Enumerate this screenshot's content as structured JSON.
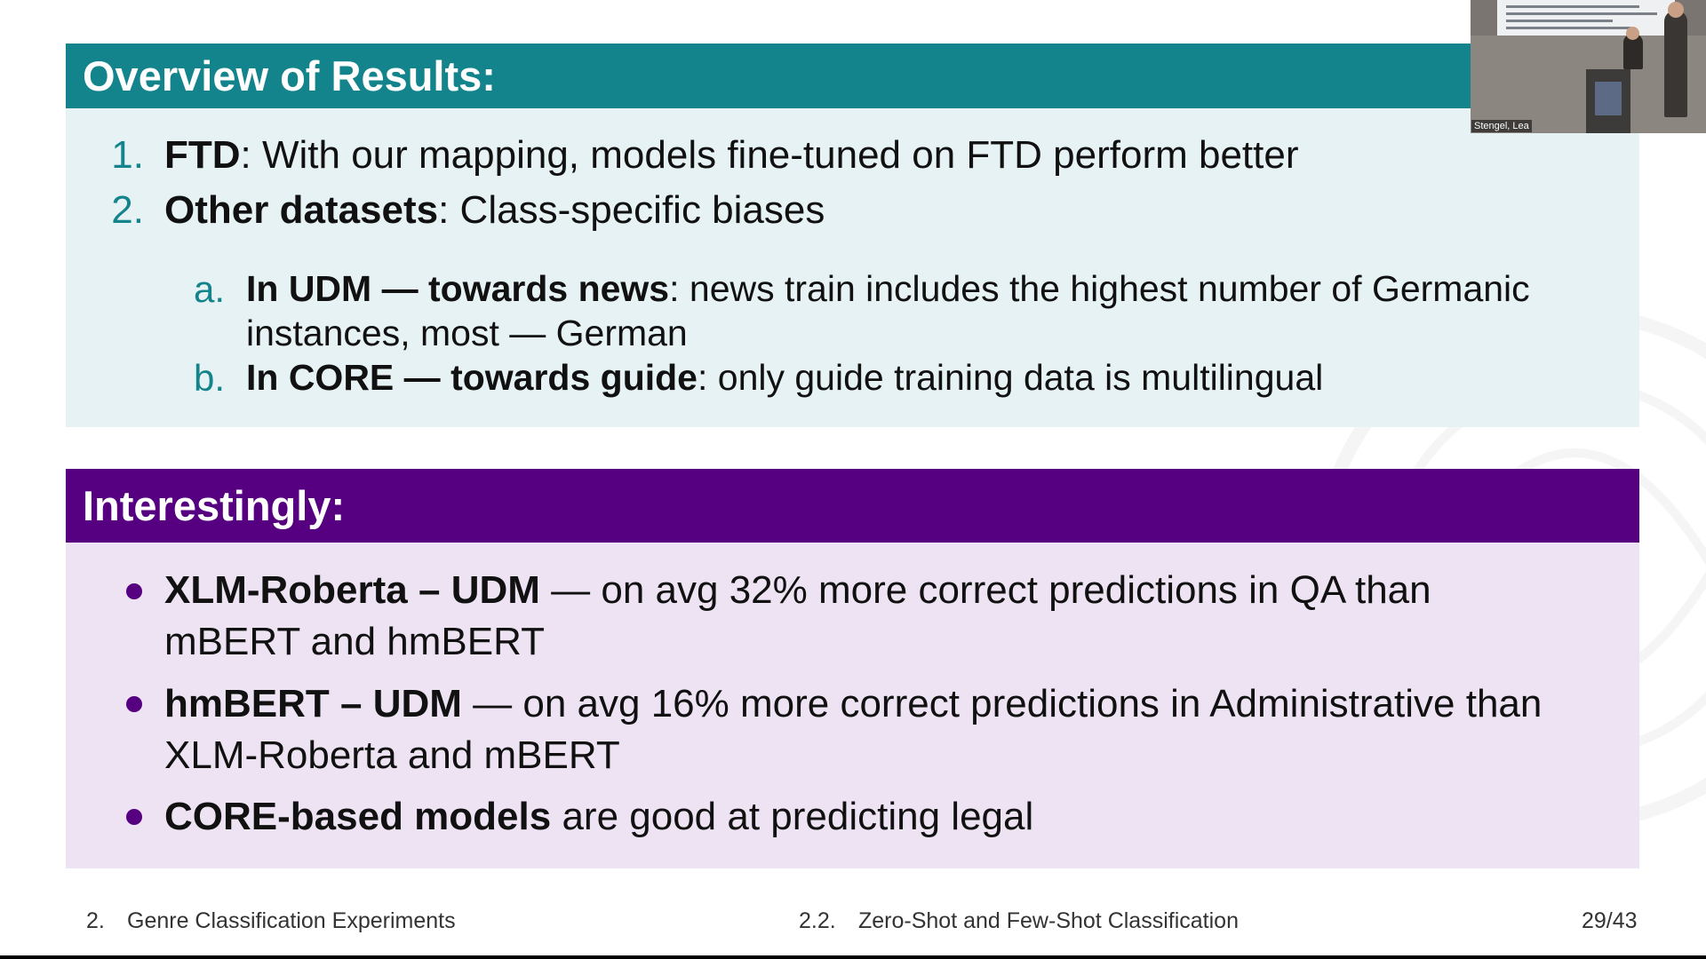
{
  "results": {
    "title": "Overview of Results:",
    "items": [
      {
        "number": "1.",
        "bold": "FTD",
        "text": ": With our mapping, models fine-tuned on FTD perform better"
      },
      {
        "number": "2.",
        "bold": "Other datasets",
        "text": ": Class-specific biases"
      }
    ],
    "subitems": [
      {
        "letter": "a.",
        "bold": "In UDM — towards news",
        "text": ": news train includes the highest number of Germanic",
        "cont": "instances, most — German"
      },
      {
        "letter": "b.",
        "bold": "In CORE — towards guide",
        "text": ": only guide training data is multilingual"
      }
    ]
  },
  "interesting": {
    "title": "Interestingly:",
    "bullets": [
      {
        "bold": "XLM-Roberta – UDM",
        "text": " — on avg 32% more correct predictions in QA than",
        "cont": "mBERT and hmBERT"
      },
      {
        "bold": "hmBERT – UDM",
        "text": " — on avg 16% more correct predictions in Administrative than",
        "cont": "XLM-Roberta and mBERT"
      },
      {
        "bold": "CORE-based models",
        "text": " are good at predicting legal"
      }
    ]
  },
  "footer": {
    "section_num": "2.",
    "section_title": "Genre Classification Experiments",
    "subsection_num": "2.2.",
    "subsection_title": "Zero-Shot and Few-Shot Classification",
    "page": "29/43"
  },
  "webcam": {
    "speaker_name": "Stengel, Lea"
  },
  "colors": {
    "results_header": "#13848b",
    "results_bg": "#e6f2f4",
    "interesting_header": "#560081",
    "interesting_bg": "#ede3f3"
  }
}
